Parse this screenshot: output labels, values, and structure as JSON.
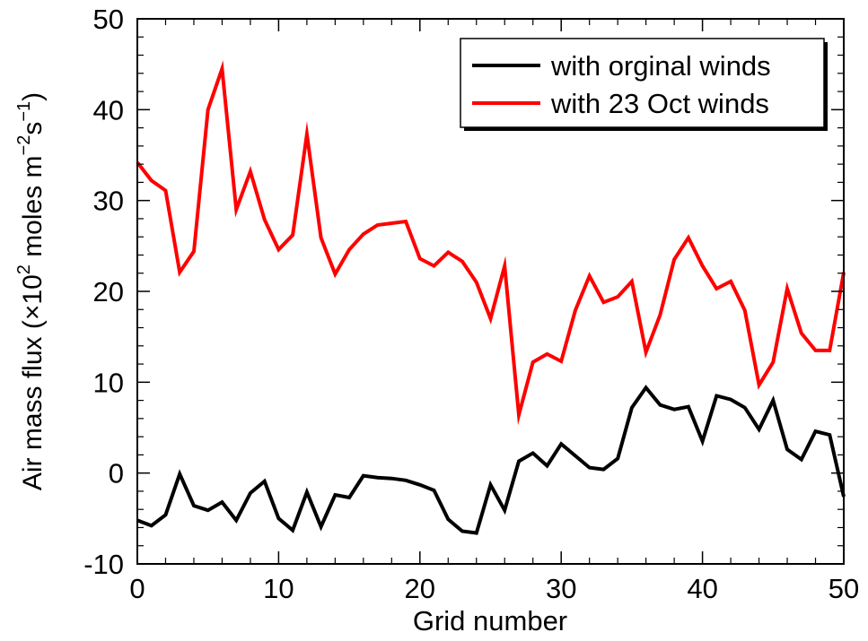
{
  "chart_data": {
    "type": "line",
    "title": "",
    "xlabel": "Grid number",
    "ylabel_parts": {
      "prefix": "Air mass flux (",
      "times": "×10",
      "exp1": "2",
      "mid": " moles m",
      "exp2": "−2",
      "s": "s",
      "exp3": "−1",
      "suffix": ")"
    },
    "xlim": [
      0,
      50
    ],
    "ylim": [
      -10,
      50
    ],
    "xticks": [
      0,
      10,
      20,
      30,
      40,
      50
    ],
    "xtick_labels": [
      "0",
      "10",
      "20",
      "30",
      "40",
      "50"
    ],
    "yticks": [
      -10,
      0,
      10,
      20,
      30,
      40,
      50
    ],
    "ytick_labels": [
      "-10",
      "0",
      "10",
      "20",
      "30",
      "40",
      "50"
    ],
    "grid": false,
    "legend_position": "top-right",
    "x": [
      0,
      1,
      2,
      3,
      4,
      5,
      6,
      7,
      8,
      9,
      10,
      11,
      12,
      13,
      14,
      15,
      16,
      17,
      18,
      19,
      20,
      21,
      22,
      23,
      24,
      25,
      26,
      27,
      28,
      29,
      30,
      31,
      32,
      33,
      34,
      35,
      36,
      37,
      38,
      39,
      40,
      41,
      42,
      43,
      44,
      45,
      46,
      47,
      48,
      49,
      50
    ],
    "series": [
      {
        "name": "with orginal winds",
        "color": "#000000",
        "values": [
          -5.2,
          -5.8,
          -4.6,
          -0.1,
          -3.6,
          -4.1,
          -3.2,
          -5.2,
          -2.2,
          -0.9,
          -5.0,
          -6.3,
          -2.1,
          -5.9,
          -2.4,
          -2.7,
          -0.3,
          -0.5,
          -0.6,
          -0.8,
          -1.3,
          -1.9,
          -5.1,
          -6.4,
          -6.6,
          -1.3,
          -4.1,
          1.3,
          2.2,
          0.8,
          3.2,
          1.9,
          0.6,
          0.4,
          1.6,
          7.2,
          9.4,
          7.5,
          7.0,
          7.3,
          3.5,
          8.5,
          8.1,
          7.2,
          4.8,
          8.0,
          2.6,
          1.5,
          4.6,
          4.2,
          -2.6
        ]
      },
      {
        "name": "with 23 Oct winds",
        "color": "#ff0000",
        "values": [
          34.2,
          32.2,
          31.1,
          22.1,
          24.4,
          40.0,
          44.5,
          29.0,
          33.2,
          27.9,
          24.6,
          26.2,
          37.3,
          25.9,
          21.9,
          24.6,
          26.3,
          27.3,
          27.5,
          27.7,
          23.6,
          22.8,
          24.3,
          23.3,
          21.0,
          17.0,
          22.8,
          6.4,
          12.2,
          13.1,
          12.3,
          17.9,
          21.7,
          18.8,
          19.4,
          21.1,
          13.3,
          17.4,
          23.5,
          25.9,
          22.8,
          20.3,
          21.1,
          17.9,
          9.7,
          12.2,
          20.3,
          15.4,
          13.5,
          13.5,
          22.1
        ]
      }
    ]
  }
}
